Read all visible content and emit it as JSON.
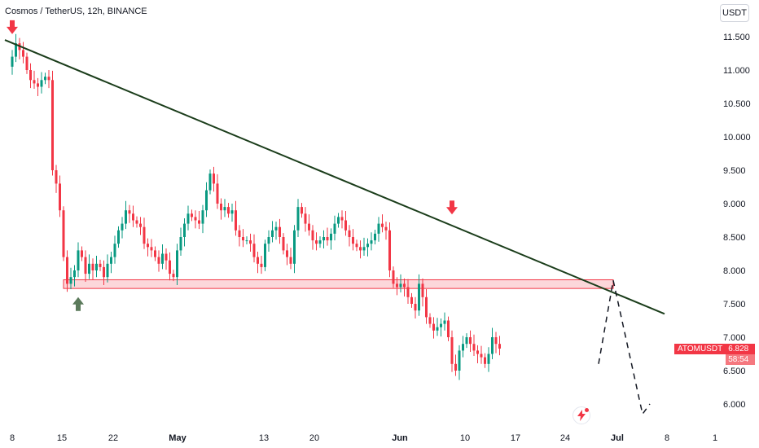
{
  "header": {
    "title": "Cosmos / TetherUS, 12h, BINANCE",
    "currency_button": "USDT"
  },
  "price_tag": {
    "symbol": "ATOMUSDT",
    "price": "6.828",
    "countdown": "58:54"
  },
  "icons": {
    "flash": "lightning-icon"
  },
  "colors": {
    "up": "#089981",
    "down": "#f23645",
    "trendline": "#1b3d1b",
    "zone_fill": "#f2364533",
    "arrow_up": "#5b7a5b"
  },
  "chart_data": {
    "type": "candlestick",
    "symbol": "ATOMUSDT",
    "interval": "12h",
    "exchange": "BINANCE",
    "x_ticks": [
      "8",
      "15",
      "22",
      "May",
      "13",
      "20",
      "Jun",
      "10",
      "17",
      "24",
      "Jul",
      "8",
      "1"
    ],
    "y_ticks": [
      "11.500",
      "11.000",
      "10.500",
      "10.000",
      "9.500",
      "9.000",
      "8.500",
      "8.000",
      "7.500",
      "7.000",
      "6.500",
      "6.000"
    ],
    "ylim": [
      5.6,
      12.0
    ],
    "close_path": [
      11.05,
      11.2,
      11.4,
      11.3,
      11.2,
      11.0,
      10.85,
      10.8,
      10.75,
      10.85,
      10.9,
      10.85,
      9.5,
      9.3,
      8.9,
      8.2,
      7.8,
      7.9,
      8.0,
      8.3,
      8.2,
      7.95,
      8.1,
      8.0,
      8.1,
      8.05,
      7.9,
      8.1,
      8.2,
      8.4,
      8.6,
      8.7,
      8.9,
      8.85,
      8.75,
      8.7,
      8.65,
      8.4,
      8.35,
      8.3,
      8.2,
      8.1,
      8.25,
      8.15,
      7.95,
      7.9,
      8.3,
      8.5,
      8.7,
      8.85,
      8.8,
      8.75,
      8.7,
      8.9,
      9.2,
      9.45,
      9.3,
      9.0,
      8.9,
      8.95,
      8.85,
      8.9,
      8.6,
      8.5,
      8.45,
      8.45,
      8.4,
      8.2,
      8.1,
      8.05,
      8.4,
      8.5,
      8.6,
      8.65,
      8.5,
      8.3,
      8.2,
      8.1,
      8.6,
      8.95,
      8.85,
      8.7,
      8.6,
      8.45,
      8.4,
      8.45,
      8.5,
      8.45,
      8.55,
      8.7,
      8.8,
      8.75,
      8.6,
      8.5,
      8.4,
      8.35,
      8.3,
      8.35,
      8.4,
      8.45,
      8.55,
      8.7,
      8.65,
      8.6,
      8.0,
      7.8,
      7.75,
      7.8,
      7.75,
      7.6,
      7.5,
      7.4,
      7.8,
      7.6,
      7.3,
      7.2,
      7.1,
      7.15,
      7.2,
      7.25,
      7.0,
      6.6,
      6.5,
      6.8,
      6.9,
      7.0,
      6.9,
      6.8,
      6.75,
      6.7,
      6.6,
      6.75,
      7.0,
      6.9,
      6.83
    ],
    "series": [
      {
        "name": "ATOMUSDT",
        "last_price": 6.828
      }
    ],
    "annotations": {
      "trendline": {
        "from": {
          "x": "Apr 7",
          "y": 11.45
        },
        "to": {
          "x": "Jul 6",
          "y": 7.35
        }
      },
      "support_zone": {
        "y_low": 7.73,
        "y_high": 7.86,
        "x_from": "Apr 15",
        "x_to": "Jun 29"
      },
      "down_arrows": [
        {
          "x": "Apr 8",
          "y": 11.55
        },
        {
          "x": "Jun 7",
          "y": 8.85
        }
      ],
      "up_arrow": {
        "x": "Apr 17",
        "y": 7.6
      },
      "projection": [
        {
          "x": "Jun 29",
          "y": 7.85
        },
        {
          "x": "Jul 3",
          "y": 5.85
        },
        {
          "x": "Jul 4",
          "y": 6.0
        }
      ],
      "dashed_tail": [
        {
          "x": "Jun 27",
          "y": 6.6
        },
        {
          "x": "Jun 29",
          "y": 7.85
        }
      ]
    },
    "grid": false,
    "axis_position": "right"
  }
}
